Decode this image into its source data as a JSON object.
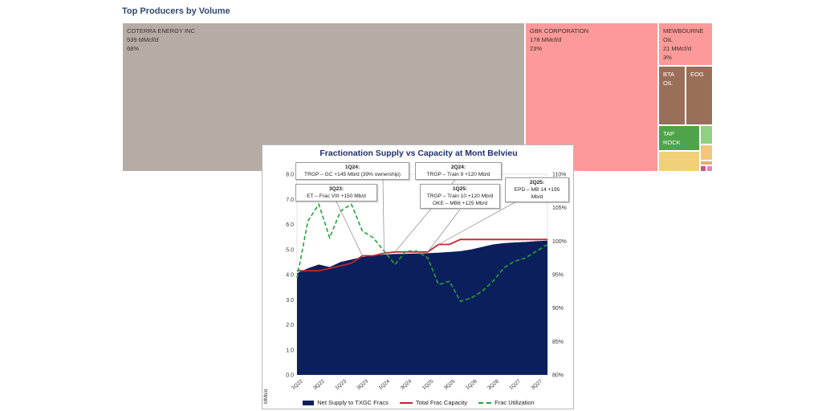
{
  "treemap": {
    "title": "Top Producers by Volume",
    "tiles": [
      {
        "name": "COTERRA ENERGY INC",
        "value_text": "539 MMcf/d",
        "pct_text": "68%",
        "color": "#b6aca6"
      },
      {
        "name": "GBK CORPORATION",
        "value_text": "178 MMcf/d",
        "pct_text": "23%",
        "color": "#fb9a99"
      },
      {
        "name": "MEWBOURNE OIL",
        "value_text": "21 MMcf/d",
        "pct_text": "3%",
        "color": "#fb9a99"
      },
      {
        "name": "BTA OIL",
        "color": "#9b6e58"
      },
      {
        "name": "EOG",
        "color": "#9b6e58"
      },
      {
        "name": "TAP ROCK",
        "color": "#4fa34a"
      },
      {
        "name": "",
        "color": "#8fd17f"
      },
      {
        "name": "",
        "color": "#f2c57a"
      },
      {
        "name": "",
        "color": "#f2d079"
      },
      {
        "name": "",
        "color": "#f0a869"
      },
      {
        "name": "",
        "color": "#c8558e"
      },
      {
        "name": "",
        "color": "#d98ab8"
      }
    ]
  },
  "chart_data": {
    "type": "area",
    "title": "Fractionation Supply vs Capacity at Mont Belvieu",
    "ylabel": "MMb/d",
    "ylim": [
      0,
      8
    ],
    "yticks": [
      "0.0",
      "1.0",
      "2.0",
      "3.0",
      "4.0",
      "5.0",
      "6.0",
      "7.0",
      "8.0"
    ],
    "y2lim": [
      0.8,
      1.1
    ],
    "y2ticks": [
      "80%",
      "85%",
      "90%",
      "95%",
      "100%",
      "105%",
      "110%"
    ],
    "x_tick_labels": [
      "1Q22",
      "3Q22",
      "1Q23",
      "3Q23",
      "1Q24",
      "3Q24",
      "1Q25",
      "3Q25",
      "1Q26",
      "3Q26",
      "1Q27",
      "3Q27"
    ],
    "x": [
      "1Q22",
      "2Q22",
      "3Q22",
      "4Q22",
      "1Q23",
      "2Q23",
      "3Q23",
      "4Q23",
      "1Q24",
      "2Q24",
      "3Q24",
      "4Q24",
      "1Q25",
      "2Q25",
      "3Q25",
      "4Q25",
      "1Q26",
      "2Q26",
      "3Q26",
      "4Q26",
      "1Q27",
      "2Q27",
      "3Q27",
      "4Q27"
    ],
    "series": [
      {
        "name": "Net Supply to TXGC Fracs",
        "axis": "left",
        "style": "area",
        "color": "#0b1f5c",
        "values": [
          4.05,
          4.25,
          4.4,
          4.3,
          4.5,
          4.6,
          4.7,
          4.75,
          4.8,
          4.82,
          4.83,
          4.84,
          4.85,
          4.87,
          4.9,
          4.93,
          5.0,
          5.1,
          5.2,
          5.25,
          5.28,
          5.3,
          5.33,
          5.35
        ]
      },
      {
        "name": "Total Frac Capacity",
        "axis": "left",
        "style": "line",
        "color": "#c0272d",
        "values": [
          4.15,
          4.15,
          4.15,
          4.25,
          4.35,
          4.45,
          4.75,
          4.75,
          4.85,
          4.9,
          4.9,
          4.9,
          4.9,
          5.2,
          5.2,
          5.4,
          5.4,
          5.4,
          5.4,
          5.4,
          5.4,
          5.4,
          5.4,
          5.4
        ]
      },
      {
        "name": "Frac Utilization",
        "axis": "right",
        "style": "dashed",
        "color": "#22a33a",
        "values": [
          0.945,
          1.03,
          1.055,
          1.005,
          1.045,
          1.055,
          1.015,
          1.005,
          0.985,
          0.965,
          0.985,
          0.985,
          0.975,
          0.935,
          0.94,
          0.91,
          0.915,
          0.925,
          0.94,
          0.96,
          0.97,
          0.975,
          0.985,
          0.995
        ]
      }
    ],
    "legend": [
      "Net Supply to TXGC Fracs",
      "Total Frac Capacity",
      "Frac Utilization"
    ],
    "legend_position": "bottom",
    "grid": true,
    "annotations": [
      {
        "title": "1Q24:",
        "lines": [
          "TRGP – GC +145 Mb/d (39% ownership)"
        ],
        "points_to": "1Q24"
      },
      {
        "title": "3Q23:",
        "lines": [
          "ET – Frac VIII  +150 Mb/d"
        ],
        "points_to": "3Q23"
      },
      {
        "title": "2Q24:",
        "lines": [
          "TRGP – Train 9  +120 Mb/d"
        ],
        "points_to": "2Q24"
      },
      {
        "title": "1Q25:",
        "lines": [
          "TRGP – Train 10  +120 Mb/d",
          "OKE – MB6  +125 Mb/d"
        ],
        "points_to": "1Q25"
      },
      {
        "title": "2Q25:",
        "lines": [
          "EPD – MB 14  +195",
          "Mb/d"
        ],
        "points_to": "2Q25"
      }
    ]
  }
}
